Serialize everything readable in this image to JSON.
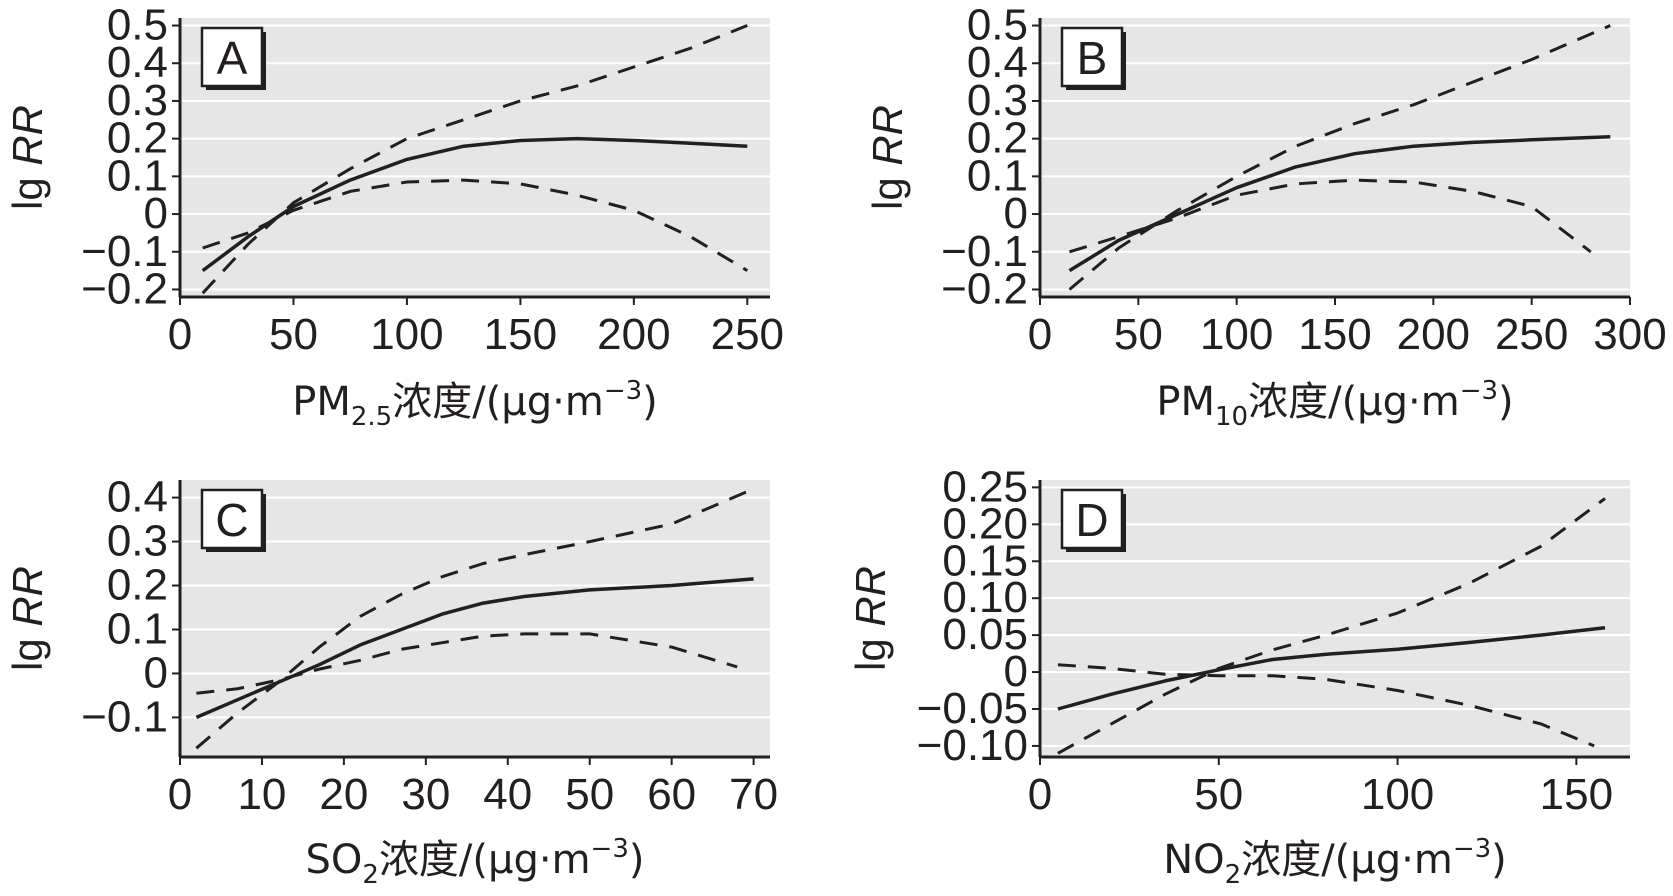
{
  "figure": {
    "ylabel_prefix": "lg ",
    "ylabel_italic": "RR",
    "xlabel_unit": "浓度/(μg·m",
    "xlabel_exp": "−3",
    "xlabel_close": ")",
    "colors": {
      "plot_bg": "#e6e6e6",
      "grid": "#ffffff",
      "line": "#231f20",
      "axis": "#231f20"
    }
  },
  "chart_data": [
    {
      "panel": "A",
      "type": "line",
      "pollutant_main": "PM",
      "pollutant_sub": "2.5",
      "xlim": [
        0,
        260
      ],
      "ylim": [
        -0.22,
        0.52
      ],
      "xticks": [
        0,
        50,
        100,
        150,
        200,
        250
      ],
      "xtick_labels": [
        "0",
        "50",
        "100",
        "150",
        "200",
        "250"
      ],
      "yticks": [
        -0.2,
        -0.1,
        0,
        0.1,
        0.2,
        0.3,
        0.4,
        0.5
      ],
      "ytick_labels": [
        "−0.2",
        "−0.1",
        "0",
        "0.1",
        "0.2",
        "0.3",
        "0.4",
        "0.5"
      ],
      "grid": true,
      "series": [
        {
          "style": "solid",
          "x": [
            10,
            30,
            50,
            75,
            100,
            125,
            150,
            175,
            200,
            225,
            250
          ],
          "y": [
            -0.15,
            -0.06,
            0.02,
            0.09,
            0.145,
            0.18,
            0.195,
            0.2,
            0.195,
            0.188,
            0.18
          ]
        },
        {
          "style": "dashed",
          "x": [
            10,
            30,
            50,
            75,
            100,
            125,
            150,
            175,
            200,
            225,
            250
          ],
          "y": [
            -0.21,
            -0.08,
            0.03,
            0.12,
            0.2,
            0.25,
            0.3,
            0.34,
            0.39,
            0.44,
            0.5
          ]
        },
        {
          "style": "dashed",
          "x": [
            10,
            30,
            50,
            75,
            100,
            125,
            150,
            175,
            200,
            225,
            250
          ],
          "y": [
            -0.09,
            -0.05,
            0.01,
            0.06,
            0.085,
            0.09,
            0.08,
            0.05,
            0.01,
            -0.06,
            -0.15
          ]
        }
      ]
    },
    {
      "panel": "B",
      "type": "line",
      "pollutant_main": "PM",
      "pollutant_sub": "10",
      "xlim": [
        0,
        300
      ],
      "ylim": [
        -0.22,
        0.52
      ],
      "xticks": [
        0,
        50,
        100,
        150,
        200,
        250,
        300
      ],
      "xtick_labels": [
        "0",
        "50",
        "100",
        "150",
        "200",
        "250",
        "300"
      ],
      "yticks": [
        -0.2,
        -0.1,
        0,
        0.1,
        0.2,
        0.3,
        0.4,
        0.5
      ],
      "ytick_labels": [
        "−0.2",
        "−0.1",
        "0",
        "0.1",
        "0.2",
        "0.3",
        "0.4",
        "0.5"
      ],
      "grid": true,
      "series": [
        {
          "style": "solid",
          "x": [
            15,
            40,
            70,
            100,
            130,
            160,
            190,
            220,
            250,
            290
          ],
          "y": [
            -0.15,
            -0.07,
            0.0,
            0.07,
            0.125,
            0.16,
            0.18,
            0.19,
            0.197,
            0.205
          ]
        },
        {
          "style": "dashed",
          "x": [
            15,
            40,
            70,
            100,
            130,
            160,
            190,
            220,
            250,
            290
          ],
          "y": [
            -0.2,
            -0.09,
            0.01,
            0.1,
            0.18,
            0.24,
            0.29,
            0.35,
            0.41,
            0.5
          ]
        },
        {
          "style": "dashed",
          "x": [
            15,
            40,
            70,
            100,
            130,
            160,
            190,
            220,
            250,
            280
          ],
          "y": [
            -0.1,
            -0.06,
            -0.01,
            0.05,
            0.08,
            0.09,
            0.085,
            0.06,
            0.02,
            -0.1
          ]
        }
      ]
    },
    {
      "panel": "C",
      "type": "line",
      "pollutant_main": "SO",
      "pollutant_sub": "2",
      "xlim": [
        0,
        72
      ],
      "ylim": [
        -0.19,
        0.44
      ],
      "xticks": [
        0,
        10,
        20,
        30,
        40,
        50,
        60,
        70
      ],
      "xtick_labels": [
        "0",
        "10",
        "20",
        "30",
        "40",
        "50",
        "60",
        "70"
      ],
      "yticks": [
        -0.1,
        0,
        0.1,
        0.2,
        0.3,
        0.4
      ],
      "ytick_labels": [
        "−0.1",
        "0",
        "0.1",
        "0.2",
        "0.3",
        "0.4"
      ],
      "grid": true,
      "series": [
        {
          "style": "solid",
          "x": [
            2,
            7,
            12,
            17,
            22,
            27,
            32,
            37,
            42,
            50,
            60,
            70
          ],
          "y": [
            -0.1,
            -0.06,
            -0.02,
            0.02,
            0.065,
            0.1,
            0.135,
            0.16,
            0.175,
            0.19,
            0.2,
            0.215
          ]
        },
        {
          "style": "dashed",
          "x": [
            2,
            7,
            12,
            17,
            22,
            27,
            32,
            37,
            42,
            50,
            60,
            70
          ],
          "y": [
            -0.17,
            -0.09,
            -0.02,
            0.06,
            0.13,
            0.18,
            0.22,
            0.25,
            0.27,
            0.3,
            0.34,
            0.42
          ]
        },
        {
          "style": "dashed",
          "x": [
            2,
            7,
            12,
            17,
            22,
            27,
            32,
            37,
            42,
            50,
            60,
            68
          ],
          "y": [
            -0.045,
            -0.035,
            -0.015,
            0.01,
            0.03,
            0.055,
            0.07,
            0.085,
            0.09,
            0.09,
            0.06,
            0.015
          ]
        }
      ]
    },
    {
      "panel": "D",
      "type": "line",
      "pollutant_main": "NO",
      "pollutant_sub": "2",
      "xlim": [
        0,
        165
      ],
      "ylim": [
        -0.115,
        0.26
      ],
      "xticks": [
        0,
        50,
        100,
        150
      ],
      "xtick_labels": [
        "0",
        "50",
        "100",
        "150"
      ],
      "yticks": [
        -0.1,
        -0.05,
        0,
        0.05,
        0.1,
        0.15,
        0.2,
        0.25
      ],
      "ytick_labels": [
        "−0.10",
        "−0.05",
        "0",
        "0.05",
        "0.10",
        "0.15",
        "0.20",
        "0.25"
      ],
      "grid": true,
      "series": [
        {
          "style": "solid",
          "x": [
            5,
            20,
            35,
            50,
            65,
            80,
            100,
            120,
            140,
            158
          ],
          "y": [
            -0.05,
            -0.03,
            -0.012,
            0.003,
            0.017,
            0.024,
            0.031,
            0.04,
            0.05,
            0.06
          ]
        },
        {
          "style": "dashed",
          "x": [
            5,
            20,
            35,
            50,
            65,
            80,
            100,
            120,
            140,
            158
          ],
          "y": [
            -0.11,
            -0.07,
            -0.03,
            0.005,
            0.03,
            0.05,
            0.08,
            0.12,
            0.17,
            0.235
          ]
        },
        {
          "style": "dashed",
          "x": [
            5,
            20,
            35,
            50,
            65,
            80,
            100,
            120,
            140,
            155
          ],
          "y": [
            0.01,
            0.005,
            -0.003,
            -0.005,
            -0.005,
            -0.01,
            -0.025,
            -0.045,
            -0.07,
            -0.1
          ]
        }
      ]
    }
  ]
}
